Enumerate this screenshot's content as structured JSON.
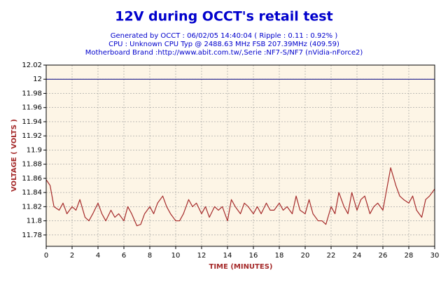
{
  "chart_data": {
    "type": "line",
    "title": "12V during OCCT's retail test",
    "subtitle": [
      "Generated by OCCT : 06/02/05 14:40:04 ( Ripple : 0.11 : 0.92% )",
      "CPU : Unknown CPU Typ @ 2488.63 MHz FSB 207.39MHz (409.59)",
      "Motherboard Brand :http://www.abit.com.tw/,Serie :NF7-S/NF7 (nVidia-nForce2)"
    ],
    "xlabel": "TIME (MINUTES)",
    "ylabel": "VOLTAGE ( VOLTS )",
    "x": [
      0,
      0.3,
      0.6,
      1,
      1.3,
      1.6,
      2,
      2.3,
      2.6,
      3,
      3.3,
      3.6,
      4,
      4.3,
      4.6,
      5,
      5.3,
      5.6,
      6,
      6.3,
      6.6,
      7,
      7.3,
      7.6,
      8,
      8.3,
      8.6,
      9,
      9.3,
      9.6,
      10,
      10.3,
      10.6,
      11,
      11.3,
      11.6,
      12,
      12.3,
      12.6,
      13,
      13.3,
      13.6,
      14,
      14.3,
      14.6,
      15,
      15.3,
      15.6,
      16,
      16.3,
      16.6,
      17,
      17.3,
      17.6,
      18,
      18.3,
      18.6,
      19,
      19.3,
      19.6,
      20,
      20.3,
      20.6,
      21,
      21.3,
      21.6,
      22,
      22.3,
      22.6,
      23,
      23.3,
      23.6,
      24,
      24.3,
      24.6,
      25,
      25.3,
      25.6,
      26,
      26.3,
      26.6,
      27,
      27.3,
      27.6,
      28,
      28.3,
      28.6,
      29,
      29.3,
      29.6,
      30
    ],
    "series": [
      {
        "color": "#a52a2a",
        "values": [
          11.858,
          11.85,
          11.82,
          11.815,
          11.825,
          11.81,
          11.82,
          11.815,
          11.83,
          11.805,
          11.8,
          11.81,
          11.825,
          11.81,
          11.8,
          11.815,
          11.805,
          11.81,
          11.8,
          11.82,
          11.81,
          11.793,
          11.795,
          11.81,
          11.82,
          11.81,
          11.825,
          11.835,
          11.82,
          11.81,
          11.8,
          11.8,
          11.81,
          11.83,
          11.82,
          11.825,
          11.81,
          11.82,
          11.805,
          11.82,
          11.815,
          11.82,
          11.8,
          11.83,
          11.82,
          11.81,
          11.825,
          11.82,
          11.81,
          11.82,
          11.81,
          11.825,
          11.815,
          11.815,
          11.825,
          11.815,
          11.82,
          11.81,
          11.835,
          11.815,
          11.81,
          11.83,
          11.81,
          11.8,
          11.8,
          11.795,
          11.82,
          11.81,
          11.84,
          11.82,
          11.81,
          11.84,
          11.815,
          11.83,
          11.835,
          11.81,
          11.82,
          11.825,
          11.815,
          11.845,
          11.875,
          11.85,
          11.835,
          11.83,
          11.825,
          11.835,
          11.815,
          11.805,
          11.83,
          11.835,
          11.845
        ]
      }
    ],
    "reference_line": {
      "value": 12,
      "color": "#000080"
    },
    "xlim": [
      0,
      30
    ],
    "xticks": [
      0,
      2,
      4,
      6,
      8,
      10,
      12,
      14,
      16,
      18,
      20,
      22,
      24,
      26,
      28,
      30
    ],
    "ylim": [
      11.764,
      12.02
    ],
    "yticks": [
      11.78,
      11.8,
      11.82,
      11.84,
      11.86,
      11.88,
      11.9,
      11.92,
      11.94,
      11.96,
      11.98,
      12,
      12.02
    ],
    "grid": true
  }
}
